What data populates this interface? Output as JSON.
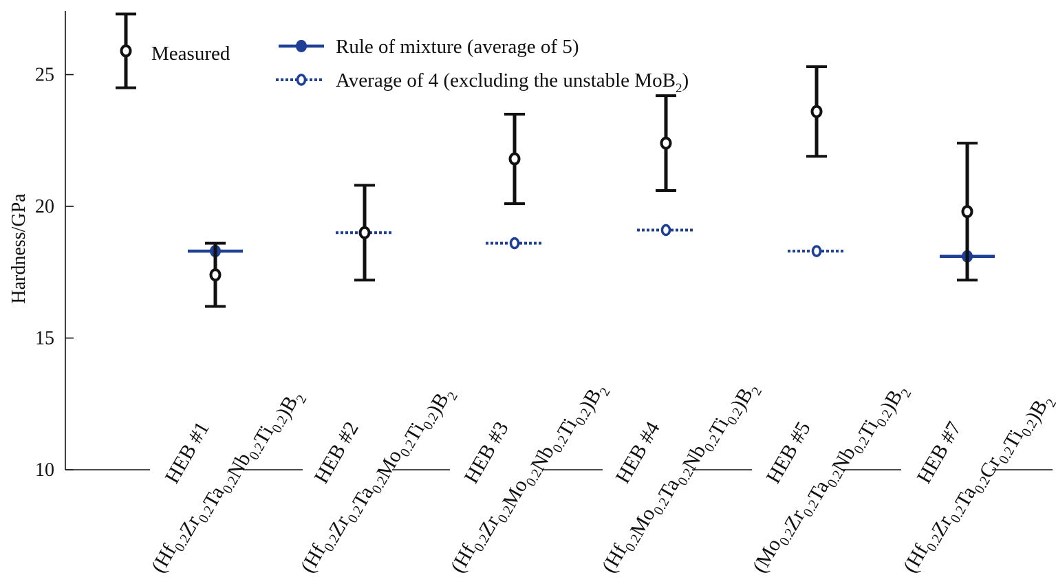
{
  "chart_data": {
    "type": "scatter",
    "ylabel": "Hardness/GPa",
    "ylim": [
      10,
      27.5
    ],
    "yticks": [
      "10",
      "15",
      "20",
      "25"
    ],
    "categories": [
      {
        "id": "HEB #1",
        "formula": [
          [
            "(Hf",
            ""
          ],
          [
            "",
            "0.2"
          ],
          [
            "Zr",
            ""
          ],
          [
            "",
            "0.2"
          ],
          [
            "Ta",
            ""
          ],
          [
            "",
            "0.2"
          ],
          [
            "Nb",
            ""
          ],
          [
            "",
            "0.2"
          ],
          [
            "Ti",
            ""
          ],
          [
            "",
            "0.2"
          ],
          [
            ")B",
            ""
          ],
          [
            "",
            "2"
          ]
        ]
      },
      {
        "id": "HEB #2",
        "formula": [
          [
            "(Hf",
            ""
          ],
          [
            "",
            "0.2"
          ],
          [
            "Zr",
            ""
          ],
          [
            "",
            "0.2"
          ],
          [
            "Ta",
            ""
          ],
          [
            "",
            "0.2"
          ],
          [
            "Mo",
            ""
          ],
          [
            "",
            "0.2"
          ],
          [
            "Ti",
            ""
          ],
          [
            "",
            "0.2"
          ],
          [
            ")B",
            ""
          ],
          [
            "",
            "2"
          ]
        ]
      },
      {
        "id": "HEB #3",
        "formula": [
          [
            "(Hf",
            ""
          ],
          [
            "",
            "0.2"
          ],
          [
            "Zr",
            ""
          ],
          [
            "",
            "0.2"
          ],
          [
            "Mo",
            ""
          ],
          [
            "",
            "0.2"
          ],
          [
            "Nb",
            ""
          ],
          [
            "",
            "0.2"
          ],
          [
            "Ti",
            ""
          ],
          [
            "",
            "0.2"
          ],
          [
            ")B",
            ""
          ],
          [
            "",
            "2"
          ]
        ]
      },
      {
        "id": "HEB #4",
        "formula": [
          [
            "(Hf",
            ""
          ],
          [
            "",
            "0.2"
          ],
          [
            "Mo",
            ""
          ],
          [
            "",
            "0.2"
          ],
          [
            "Ta",
            ""
          ],
          [
            "",
            "0.2"
          ],
          [
            "Nb",
            ""
          ],
          [
            "",
            "0.2"
          ],
          [
            "Ti",
            ""
          ],
          [
            "",
            "0.2"
          ],
          [
            ")B",
            ""
          ],
          [
            "",
            "2"
          ]
        ]
      },
      {
        "id": "HEB #5",
        "formula": [
          [
            "(Mo",
            ""
          ],
          [
            "",
            "0.2"
          ],
          [
            "Zr",
            ""
          ],
          [
            "",
            "0.2"
          ],
          [
            "Ta",
            ""
          ],
          [
            "",
            "0.2"
          ],
          [
            "Nb",
            ""
          ],
          [
            "",
            "0.2"
          ],
          [
            "Ti",
            ""
          ],
          [
            "",
            "0.2"
          ],
          [
            ")B",
            ""
          ],
          [
            "",
            "2"
          ]
        ]
      },
      {
        "id": "HEB #7",
        "formula": [
          [
            "(Hf",
            ""
          ],
          [
            "",
            "0.2"
          ],
          [
            "Zr",
            ""
          ],
          [
            "",
            "0.2"
          ],
          [
            "Ta",
            ""
          ],
          [
            "",
            "0.2"
          ],
          [
            "Cr",
            ""
          ],
          [
            "",
            "0.2"
          ],
          [
            "Ti",
            ""
          ],
          [
            "",
            "0.2"
          ],
          [
            ")B",
            ""
          ],
          [
            "",
            "2"
          ]
        ]
      }
    ],
    "series": [
      {
        "name": "Measured",
        "style": "error-bar",
        "color": "#111111",
        "values": [
          17.4,
          19.0,
          21.8,
          22.4,
          23.6,
          19.8
        ],
        "error_low": [
          16.2,
          17.2,
          20.1,
          20.6,
          21.9,
          17.2
        ],
        "error_high": [
          18.6,
          20.8,
          23.5,
          24.2,
          25.3,
          22.4
        ]
      },
      {
        "name": "Rule of mixture (average of 5)",
        "style": "solid",
        "color": "#1f3f94",
        "values": [
          18.3,
          null,
          null,
          null,
          null,
          18.1
        ]
      },
      {
        "name": "Average of 4 (excluding the unstable MoB",
        "name_sub": "2",
        "name_close": ")",
        "style": "dotted",
        "color": "#1f3f94",
        "values": [
          null,
          19.0,
          18.6,
          19.1,
          18.3,
          null
        ]
      }
    ],
    "legend": {
      "position": "top",
      "measured_sample": {
        "value": 25.9,
        "low": 24.5,
        "high": 27.3
      }
    },
    "grid": false
  }
}
